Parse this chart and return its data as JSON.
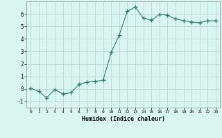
{
  "x": [
    0,
    1,
    2,
    3,
    4,
    5,
    6,
    7,
    8,
    9,
    10,
    11,
    12,
    13,
    14,
    15,
    16,
    17,
    18,
    19,
    20,
    21,
    22,
    23
  ],
  "y": [
    0.05,
    -0.2,
    -0.7,
    -0.05,
    -0.4,
    -0.3,
    0.35,
    0.55,
    0.6,
    0.7,
    2.9,
    4.3,
    6.2,
    6.55,
    5.65,
    5.5,
    5.95,
    5.9,
    5.6,
    5.45,
    5.35,
    5.3,
    5.45,
    5.45
  ],
  "line_color": "#2e7d6e",
  "marker": "D",
  "marker_size": 2.0,
  "bg_color": "#d8f5f0",
  "grid_color": "#b8d8d0",
  "xlabel": "Humidex (Indice chaleur)",
  "xlim": [
    -0.5,
    23.5
  ],
  "ylim": [
    -1.5,
    7.0
  ],
  "yticks": [
    -1,
    0,
    1,
    2,
    3,
    4,
    5,
    6
  ],
  "xticks": [
    0,
    1,
    2,
    3,
    4,
    5,
    6,
    7,
    8,
    9,
    10,
    11,
    12,
    13,
    14,
    15,
    16,
    17,
    18,
    19,
    20,
    21,
    22,
    23
  ]
}
